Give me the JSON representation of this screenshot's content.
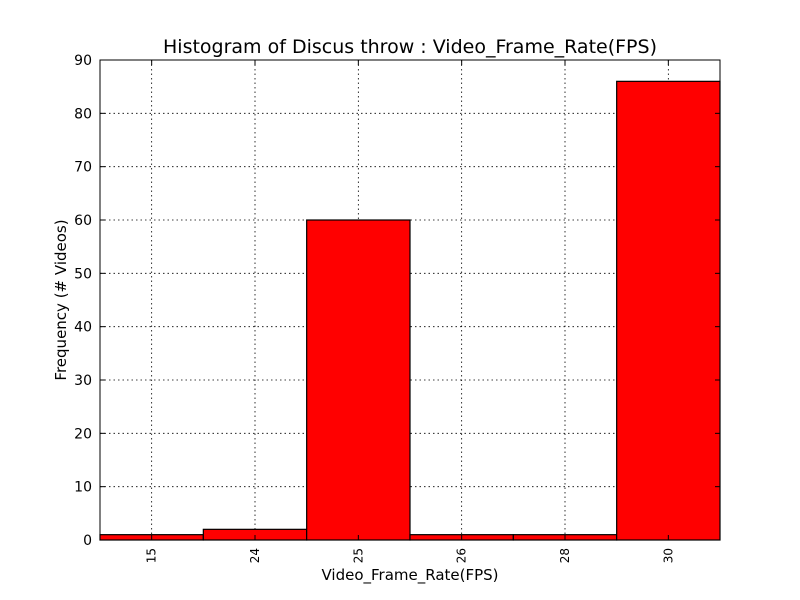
{
  "chart_data": {
    "type": "bar",
    "title": "Histogram of Discus throw : Video_Frame_Rate(FPS)",
    "xlabel": "Video_Frame_Rate(FPS)",
    "ylabel": "Frequency (# Videos)",
    "categories": [
      "15",
      "24",
      "25",
      "26",
      "28",
      "30"
    ],
    "values": [
      1,
      2,
      60,
      1,
      1,
      86
    ],
    "ylim": [
      0,
      90
    ],
    "yticks": [
      "0",
      "10",
      "20",
      "30",
      "40",
      "50",
      "60",
      "70",
      "80",
      "90"
    ],
    "grid": true,
    "bar_color": "#ff0000",
    "edge_color": "#000000"
  }
}
